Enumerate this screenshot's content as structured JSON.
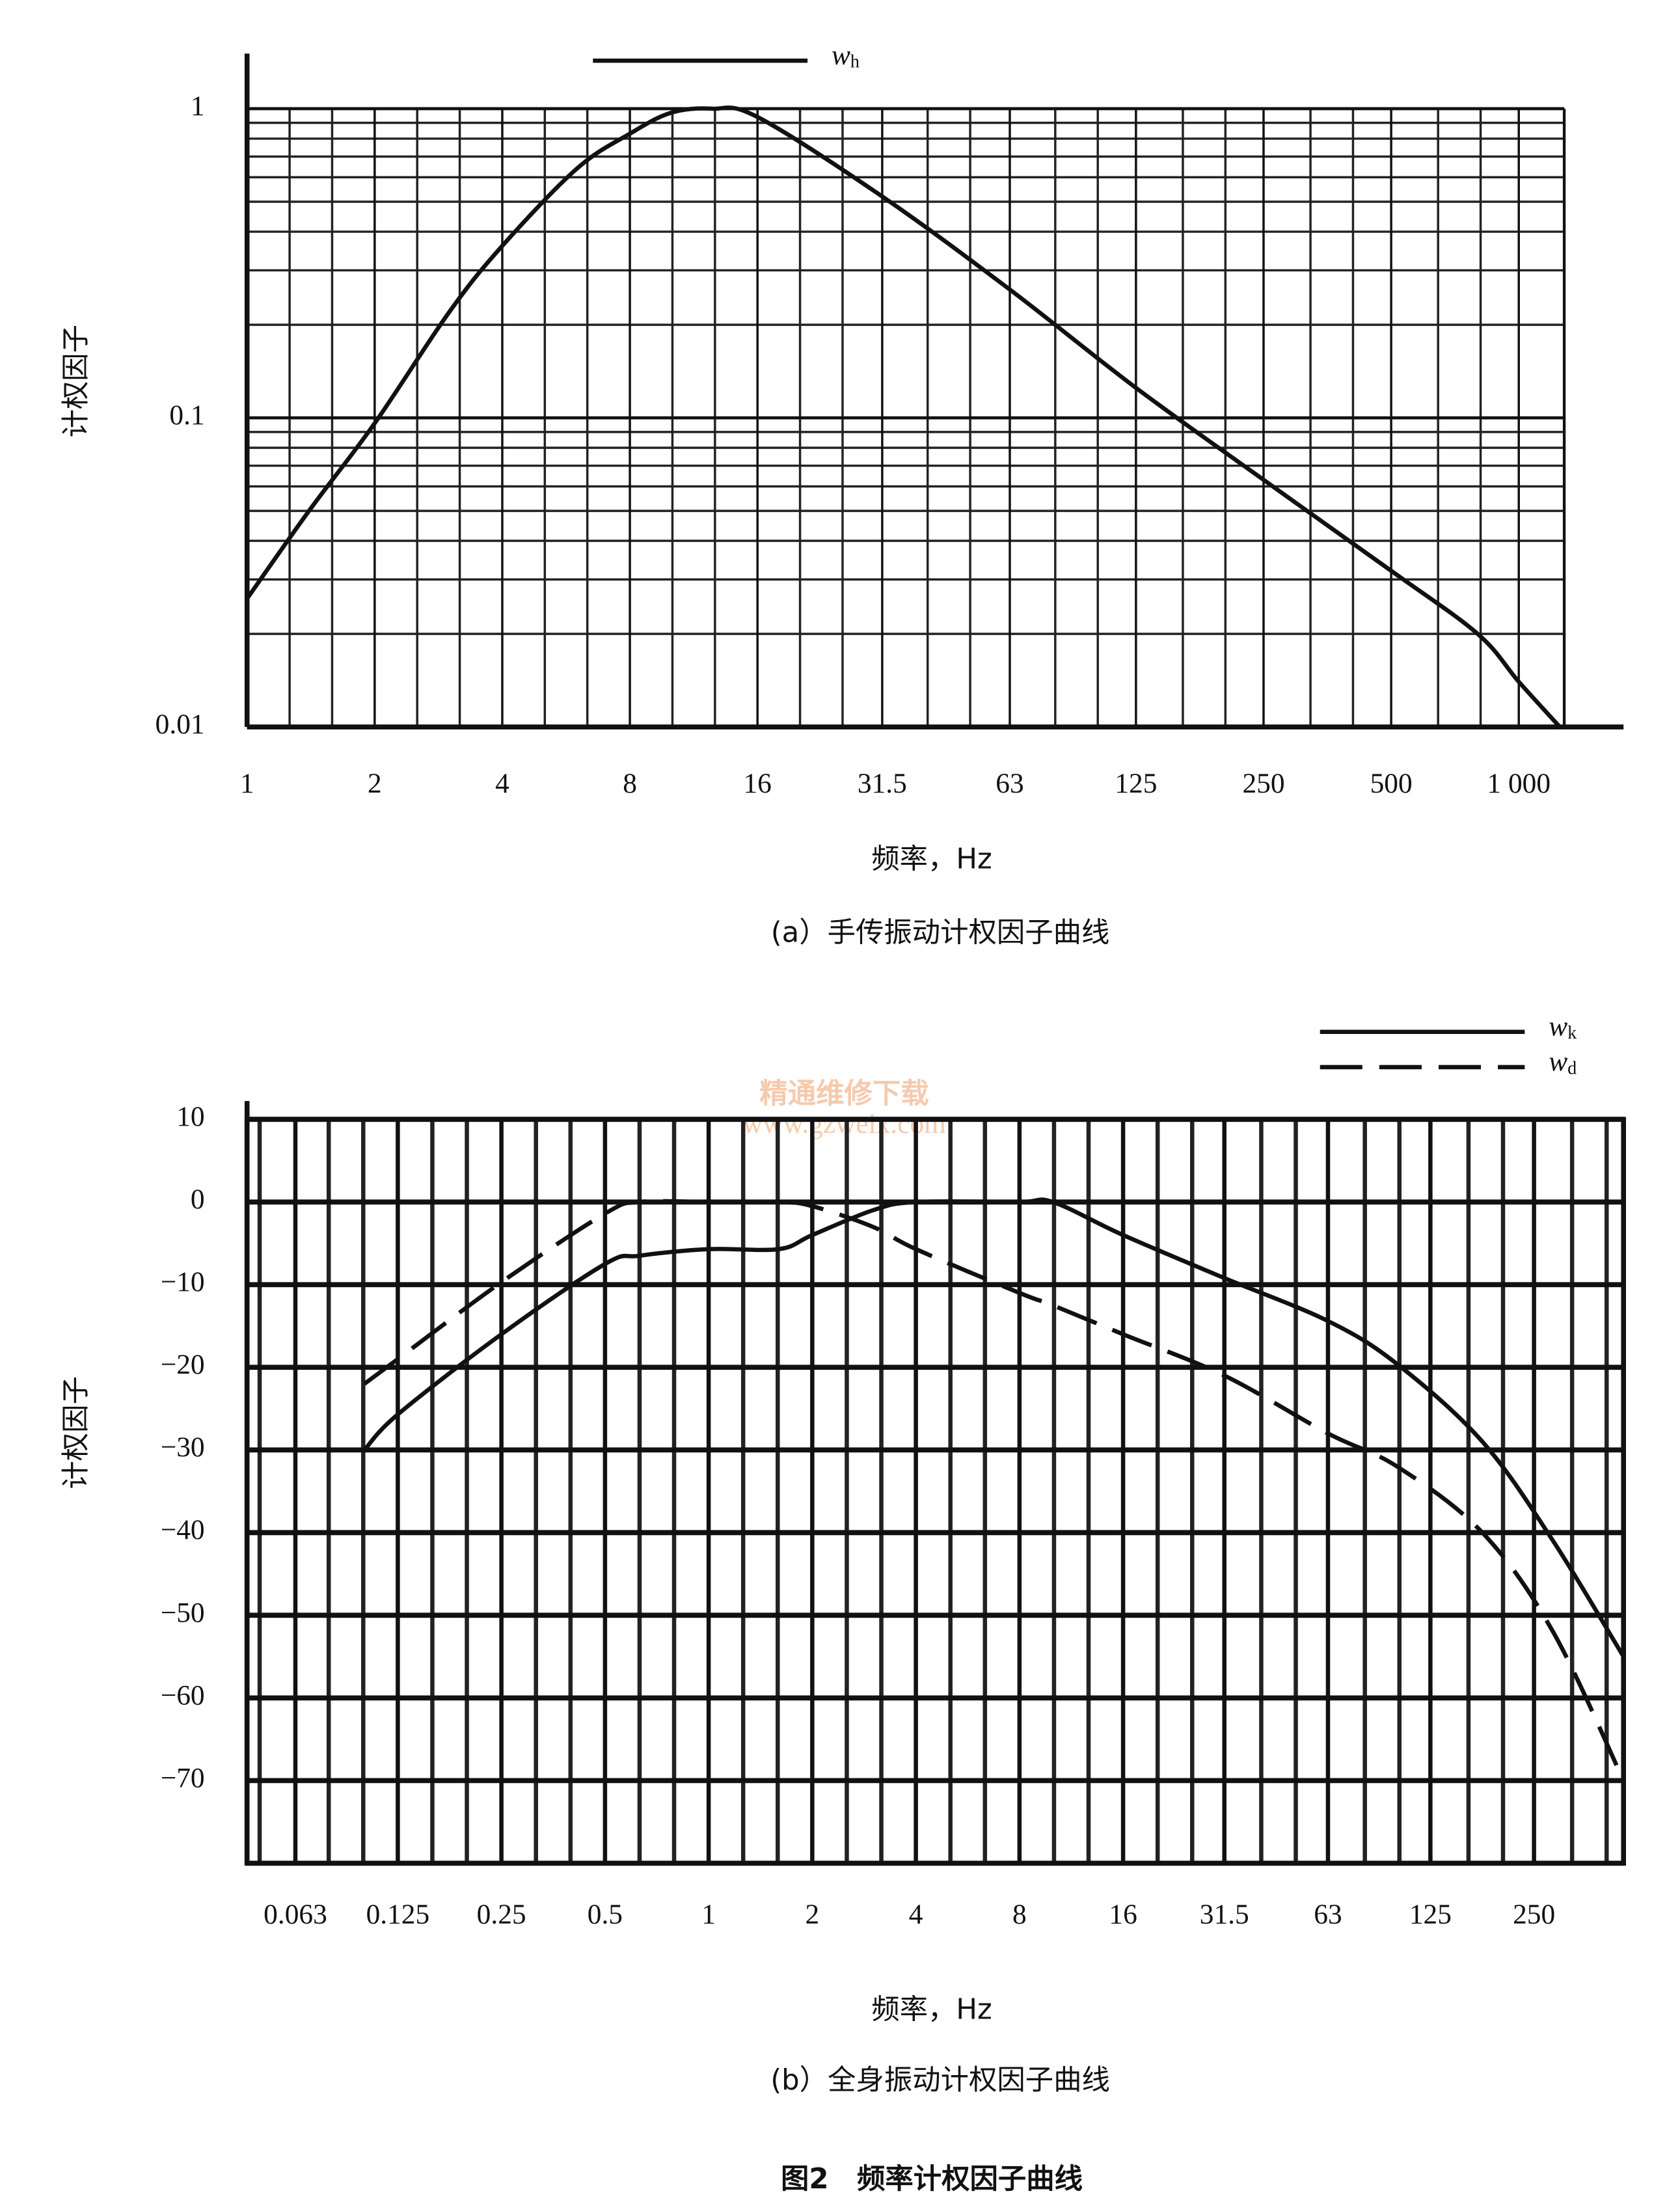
{
  "chart_data": [
    {
      "type": "line",
      "caption": "(a）手传振动计权因子曲线",
      "x_label": "频率，Hz",
      "y_label": "计权因子",
      "xscale": "log",
      "yscale": "log",
      "grid": true,
      "legend": "top",
      "xlim": [
        1,
        1280
      ],
      "ylim": [
        0.01,
        1
      ],
      "xticks": [
        1,
        2,
        4,
        8,
        16,
        31.5,
        63,
        125,
        250,
        500,
        {
          "value": 1000,
          "label": "1 000"
        }
      ],
      "yticks": [
        0.01,
        0.1,
        1
      ],
      "x": [
        1,
        1.4,
        2,
        3,
        4,
        6,
        8,
        10,
        12.5,
        16,
        31.5,
        63,
        125,
        250,
        500,
        800,
        1000,
        1250
      ],
      "series": [
        {
          "name": "wh",
          "color": "#111111",
          "linestyle": "solid",
          "values": [
            0.026,
            0.05,
            0.096,
            0.22,
            0.36,
            0.64,
            0.83,
            0.97,
            1.0,
            0.94,
            0.52,
            0.26,
            0.125,
            0.063,
            0.032,
            0.02,
            0.014,
            0.01
          ]
        }
      ]
    },
    {
      "type": "line",
      "caption": "(b）全身振动计权因子曲线",
      "x_label": "频率，Hz",
      "y_label": "计权因子",
      "xscale": "log",
      "yscale": "linear",
      "grid": true,
      "legend": "top right",
      "xlim": [
        0.0456,
        455
      ],
      "ylim": [
        -80,
        10
      ],
      "xticks": [
        0.063,
        0.125,
        0.25,
        0.5,
        1,
        2,
        4,
        8,
        16,
        31.5,
        63,
        125,
        250
      ],
      "yticks": [
        10,
        0,
        {
          "value": -10,
          "label": "−10"
        },
        {
          "value": -20,
          "label": "−20"
        },
        {
          "value": -30,
          "label": "−30"
        },
        {
          "value": -40,
          "label": "−40"
        },
        {
          "value": -50,
          "label": "−50"
        },
        {
          "value": -60,
          "label": "−60"
        },
        {
          "value": -70,
          "label": "−70"
        }
      ],
      "x": [
        0.1,
        0.125,
        0.25,
        0.5,
        0.63,
        1,
        1.6,
        2,
        3,
        4,
        8,
        10,
        16,
        31.5,
        63,
        100,
        177,
        284,
        455
      ],
      "series": [
        {
          "name": "wk",
          "color": "#111111",
          "linestyle": "solid",
          "values": [
            -30,
            -25.7,
            -16,
            -7.5,
            -6.5,
            -5.7,
            -5.7,
            -4,
            -1,
            0,
            0,
            0,
            -4,
            -9.2,
            -14.4,
            -19.6,
            -29,
            -41,
            -55
          ]
        },
        {
          "name": "wd",
          "color": "#111111",
          "linestyle": "dashed",
          "values": [
            -22,
            -19,
            -9.7,
            -1.4,
            0,
            0,
            0,
            -0.5,
            -3,
            -5.7,
            -11,
            -12.5,
            -16,
            -21,
            -28,
            -32,
            -40,
            -52,
            -70
          ]
        }
      ]
    }
  ],
  "figure_caption": "图2　频率计权因子曲线",
  "watermark": {
    "title": "精通维修下载",
    "url": "www.gzweix.com"
  }
}
